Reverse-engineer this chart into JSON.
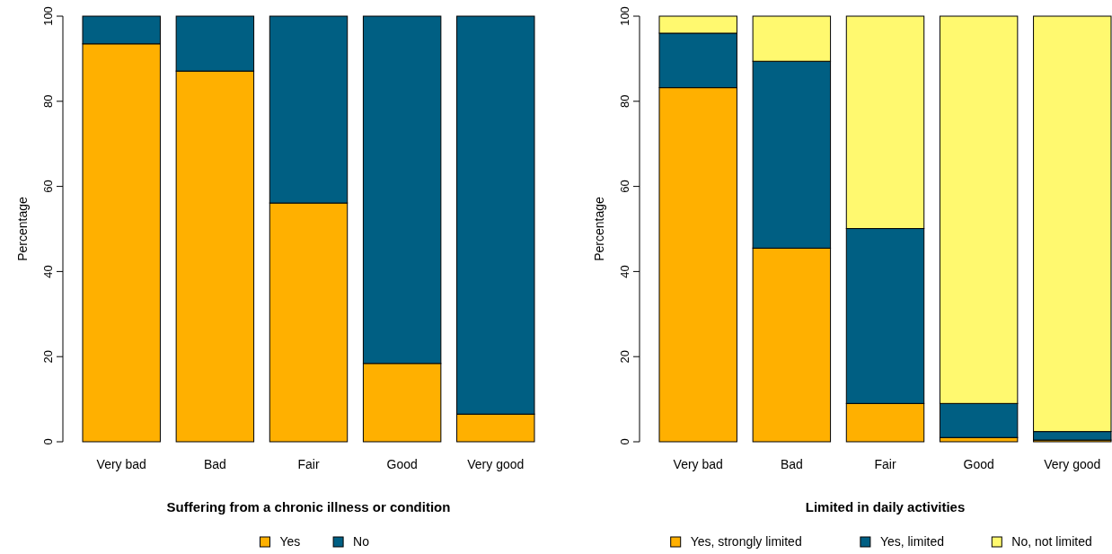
{
  "chart_data": [
    {
      "type": "bar",
      "stacked": true,
      "xlabel": "Suffering from a chronic illness or condition",
      "ylabel": "Percentage",
      "categories": [
        "Very bad",
        "Bad",
        "Fair",
        "Good",
        "Very good"
      ],
      "ylim": [
        0,
        100
      ],
      "yticks": [
        0,
        20,
        40,
        60,
        80,
        100
      ],
      "legend": "bottom",
      "series": [
        {
          "name": "Yes",
          "color": "#ffb000",
          "values": [
            93.5,
            87.1,
            56.1,
            18.4,
            6.5
          ]
        },
        {
          "name": "No",
          "color": "#005f83",
          "values": [
            6.5,
            12.9,
            43.9,
            81.6,
            93.5
          ]
        }
      ]
    },
    {
      "type": "bar",
      "stacked": true,
      "xlabel": "Limited in daily activities",
      "ylabel": "Percentage",
      "categories": [
        "Very bad",
        "Bad",
        "Fair",
        "Good",
        "Very good"
      ],
      "ylim": [
        0,
        100
      ],
      "yticks": [
        0,
        20,
        40,
        60,
        80,
        100
      ],
      "legend": "bottom",
      "series": [
        {
          "name": "Yes, strongly limited",
          "color": "#ffb000",
          "values": [
            83.2,
            45.5,
            9.0,
            1.0,
            0.4
          ]
        },
        {
          "name": "Yes, limited",
          "color": "#005f83",
          "values": [
            12.8,
            43.9,
            41.1,
            8.0,
            2.0
          ]
        },
        {
          "name": "No, not limited",
          "color": "#fff96f",
          "values": [
            4.0,
            10.6,
            49.9,
            91.0,
            97.6
          ]
        }
      ]
    }
  ]
}
